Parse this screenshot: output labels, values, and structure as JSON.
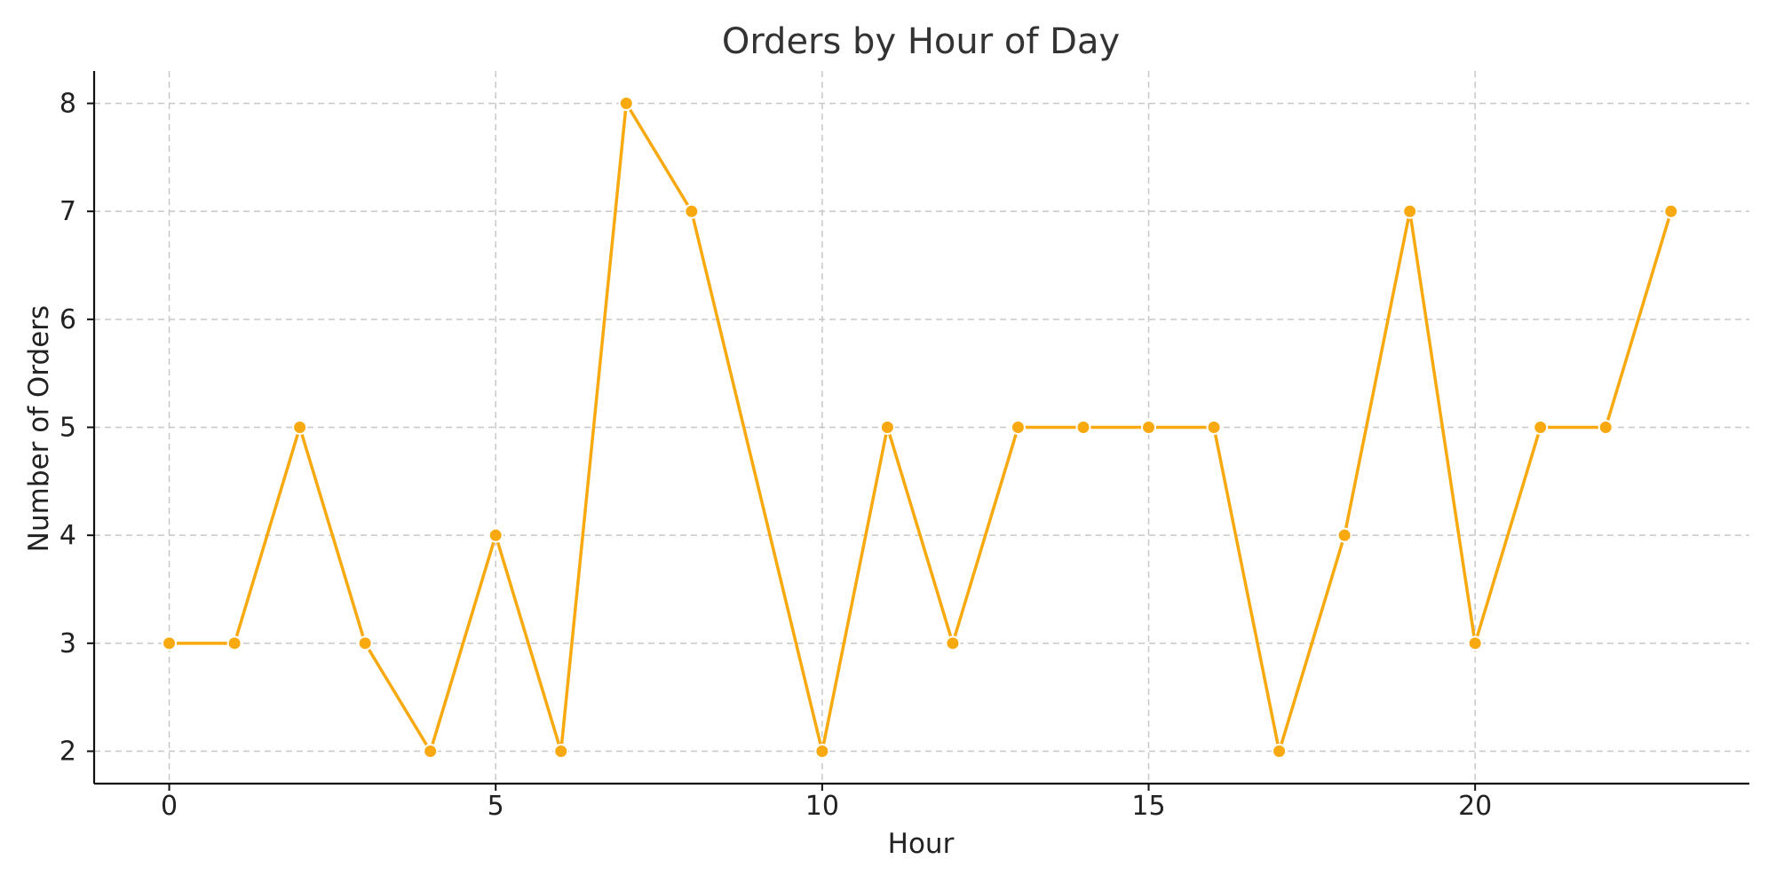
{
  "chart_data": {
    "type": "line",
    "title": "Orders by Hour of Day",
    "xlabel": "Hour",
    "ylabel": "Number of Orders",
    "x": [
      0,
      1,
      2,
      3,
      4,
      5,
      6,
      7,
      8,
      10,
      11,
      12,
      13,
      14,
      15,
      16,
      17,
      18,
      19,
      20,
      21,
      22,
      23
    ],
    "series": [
      {
        "values": [
          3,
          3,
          5,
          3,
          2,
          4,
          2,
          8,
          7,
          2,
          5,
          3,
          5,
          5,
          5,
          5,
          2,
          4,
          7,
          3,
          5,
          5,
          7
        ]
      }
    ],
    "xlim": [
      -1.15,
      24.2
    ],
    "ylim": [
      1.7,
      8.3
    ],
    "xticks": [
      0,
      5,
      10,
      15,
      20
    ],
    "yticks": [
      2,
      3,
      4,
      5,
      6,
      7,
      8
    ],
    "grid": true,
    "colors": {
      "line": "#F7A90F",
      "marker": "#F7A90F",
      "grid": "#C8C8C8"
    }
  }
}
